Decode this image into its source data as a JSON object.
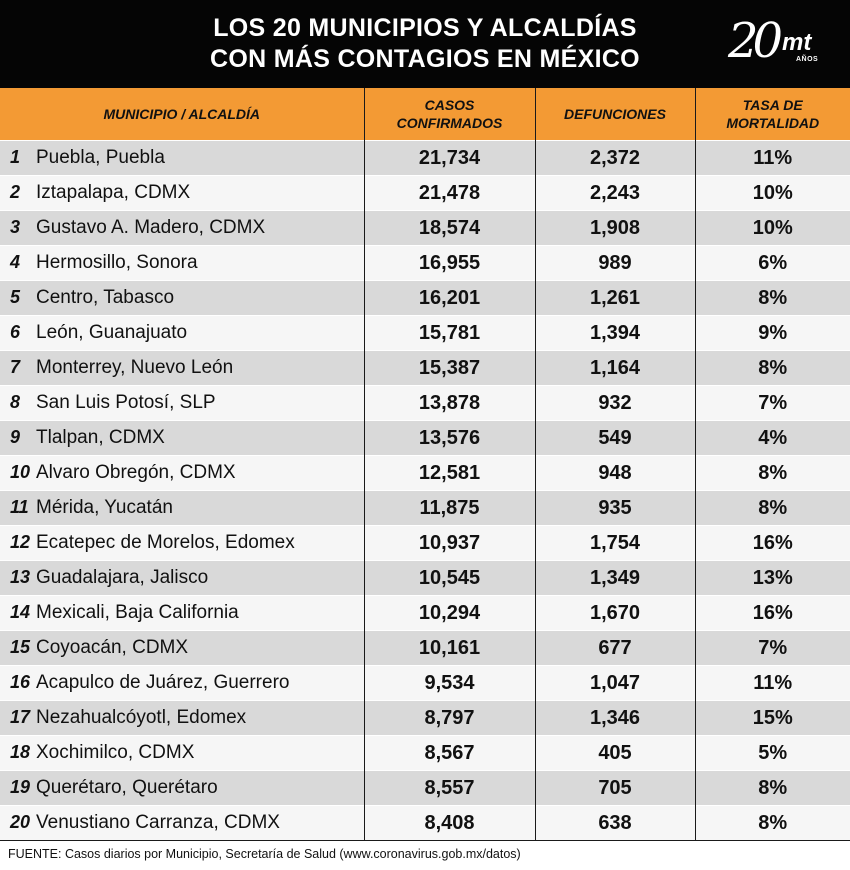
{
  "header": {
    "title_line1": "LOS 20 MUNICIPIOS Y ALCALDÍAS",
    "title_line2": "CON MÁS CONTAGIOS EN MÉXICO",
    "logo_number": "20",
    "logo_brand": "mt",
    "logo_sub": "AÑOS"
  },
  "columns": {
    "municipio": "MUNICIPIO / ALCALDÍA",
    "casos_line1": "CASOS",
    "casos_line2": "CONFIRMADOS",
    "defunciones": "DEFUNCIONES",
    "tasa_line1": "TASA DE",
    "tasa_line2": "MORTALIDAD"
  },
  "rows": [
    {
      "rank": "1",
      "name": "Puebla, Puebla",
      "casos": "21,734",
      "defunciones": "2,372",
      "tasa": "11%"
    },
    {
      "rank": "2",
      "name": "Iztapalapa, CDMX",
      "casos": "21,478",
      "defunciones": "2,243",
      "tasa": "10%"
    },
    {
      "rank": "3",
      "name": "Gustavo A. Madero, CDMX",
      "casos": "18,574",
      "defunciones": "1,908",
      "tasa": "10%"
    },
    {
      "rank": "4",
      "name": "Hermosillo, Sonora",
      "casos": "16,955",
      "defunciones": "989",
      "tasa": "6%"
    },
    {
      "rank": "5",
      "name": "Centro, Tabasco",
      "casos": "16,201",
      "defunciones": "1,261",
      "tasa": "8%"
    },
    {
      "rank": "6",
      "name": "León, Guanajuato",
      "casos": "15,781",
      "defunciones": "1,394",
      "tasa": "9%"
    },
    {
      "rank": "7",
      "name": "Monterrey, Nuevo León",
      "casos": "15,387",
      "defunciones": "1,164",
      "tasa": "8%"
    },
    {
      "rank": "8",
      "name": "San Luis Potosí, SLP",
      "casos": "13,878",
      "defunciones": "932",
      "tasa": "7%"
    },
    {
      "rank": "9",
      "name": "Tlalpan, CDMX",
      "casos": "13,576",
      "defunciones": "549",
      "tasa": "4%"
    },
    {
      "rank": "10",
      "name": "Alvaro Obregón, CDMX",
      "casos": "12,581",
      "defunciones": "948",
      "tasa": "8%"
    },
    {
      "rank": "11",
      "name": "Mérida, Yucatán",
      "casos": "11,875",
      "defunciones": "935",
      "tasa": "8%"
    },
    {
      "rank": "12",
      "name": "Ecatepec de Morelos, Edomex",
      "casos": "10,937",
      "defunciones": "1,754",
      "tasa": "16%"
    },
    {
      "rank": "13",
      "name": "Guadalajara, Jalisco",
      "casos": "10,545",
      "defunciones": "1,349",
      "tasa": "13%"
    },
    {
      "rank": "14",
      "name": "Mexicali, Baja California",
      "casos": "10,294",
      "defunciones": "1,670",
      "tasa": "16%"
    },
    {
      "rank": "15",
      "name": "Coyoacán, CDMX",
      "casos": "10,161",
      "defunciones": "677",
      "tasa": "7%"
    },
    {
      "rank": "16",
      "name": "Acapulco de Juárez, Guerrero",
      "casos": "9,534",
      "defunciones": "1,047",
      "tasa": "11%"
    },
    {
      "rank": "17",
      "name": "Nezahualcóyotl, Edomex",
      "casos": "8,797",
      "defunciones": "1,346",
      "tasa": "15%"
    },
    {
      "rank": "18",
      "name": "Xochimilco, CDMX",
      "casos": "8,567",
      "defunciones": "405",
      "tasa": "5%"
    },
    {
      "rank": "19",
      "name": "Querétaro, Querétaro",
      "casos": "8,557",
      "defunciones": "705",
      "tasa": "8%"
    },
    {
      "rank": "20",
      "name": "Venustiano Carranza, CDMX",
      "casos": "8,408",
      "defunciones": "638",
      "tasa": "8%"
    }
  ],
  "footer": {
    "source": "FUENTE: Casos diarios por Municipio, Secretaría de Salud (www.coronavirus.gob.mx/datos)"
  },
  "colors": {
    "header_bg": "#050505",
    "column_header_bg": "#f39a34",
    "row_odd_bg": "#d9d9d9",
    "row_even_bg": "#f6f6f6"
  }
}
